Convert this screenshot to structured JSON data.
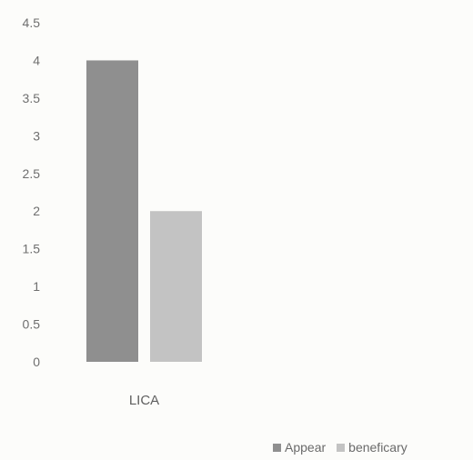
{
  "chart_data": {
    "type": "bar",
    "categories": [
      "LICA"
    ],
    "series": [
      {
        "name": "Appear",
        "values": [
          4
        ],
        "color": "#8f8f8f"
      },
      {
        "name": "beneficary",
        "values": [
          2
        ],
        "color": "#c3c3c3"
      }
    ],
    "title": "",
    "xlabel": "",
    "ylabel": "",
    "ylim": [
      0,
      4.5
    ],
    "yticks": [
      "0",
      "0.5",
      "1",
      "1.5",
      "2",
      "2.5",
      "3",
      "3.5",
      "4",
      "4.5"
    ],
    "grid": false,
    "legend_position": "bottom-right"
  }
}
